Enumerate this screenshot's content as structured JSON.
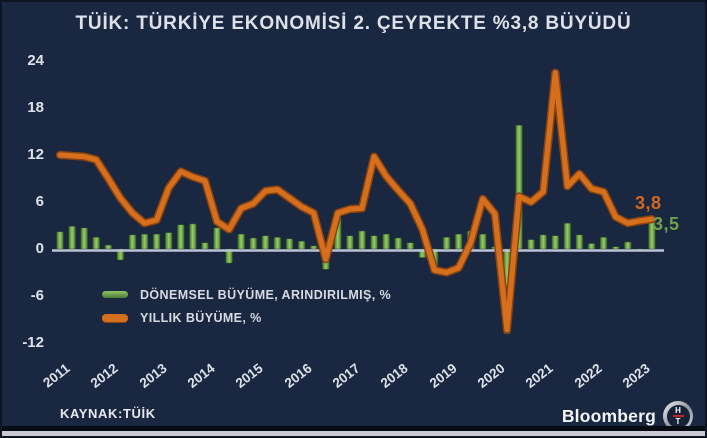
{
  "title": "TÜİK: TÜRKİYE EKONOMİSİ 2. ÇEYREKTE %3,8 BÜYÜDÜ",
  "source": "KAYNAK:TÜİK",
  "brand": {
    "name": "Bloomberg",
    "logo_top": "H",
    "logo_bottom": "T"
  },
  "colors": {
    "background": "#1a2740",
    "text": "#dde2ea",
    "axis_line": "#b9c3d3",
    "bar_green": "#6fa04d",
    "line_orange": "#d2691e"
  },
  "chart_data": {
    "type": "bar+line",
    "frequency": "quarterly",
    "x_start": "2011Q1",
    "x_end": "2023Q2",
    "year_labels": [
      "2011",
      "2012",
      "2013",
      "2014",
      "2015",
      "2016",
      "2017",
      "2018",
      "2019",
      "2020",
      "2021",
      "2022",
      "2023"
    ],
    "y_ticks": [
      24,
      18,
      12,
      6,
      0,
      -6,
      -12
    ],
    "ylim": [
      -12,
      24
    ],
    "grid": false,
    "legend_position": "bottom-left-inside",
    "series": [
      {
        "name": "DÖNEMSEL BÜYÜME, ARINDIRILMIŞ, %",
        "type": "bar",
        "color": "#6fa04d",
        "end_label": "3,5",
        "end_value": 3.5,
        "values": [
          2.2,
          2.9,
          2.7,
          1.5,
          0.5,
          -1.4,
          1.8,
          1.9,
          1.9,
          2.1,
          3.1,
          3.2,
          0.8,
          2.7,
          -1.8,
          1.9,
          1.4,
          1.7,
          1.5,
          1.3,
          1.0,
          0.4,
          -2.6,
          4.0,
          1.7,
          2.3,
          1.7,
          1.9,
          1.4,
          0.8,
          -1.1,
          -2.5,
          1.5,
          1.9,
          2.3,
          1.9,
          0.3,
          -10.8,
          15.8,
          1.2,
          1.8,
          1.7,
          3.3,
          1.8,
          0.7,
          1.5,
          0.3,
          0.9,
          -0.3,
          3.5
        ]
      },
      {
        "name": "YILLIK BÜYÜME,  %",
        "type": "line",
        "color": "#d2691e",
        "end_label": "3,8",
        "end_value": 3.8,
        "values": [
          12.0,
          11.9,
          11.8,
          11.4,
          9.0,
          6.5,
          4.6,
          3.3,
          3.7,
          7.8,
          9.9,
          9.2,
          8.7,
          3.5,
          2.5,
          5.2,
          5.8,
          7.4,
          7.6,
          6.5,
          5.4,
          4.6,
          -1.3,
          4.6,
          5.1,
          5.2,
          11.8,
          9.3,
          7.5,
          5.8,
          2.5,
          -2.7,
          -3.0,
          -2.4,
          0.8,
          6.4,
          4.5,
          -10.3,
          6.7,
          6.0,
          7.3,
          22.5,
          8.0,
          9.6,
          7.7,
          7.3,
          4.1,
          3.3,
          3.6,
          3.8
        ]
      }
    ]
  }
}
